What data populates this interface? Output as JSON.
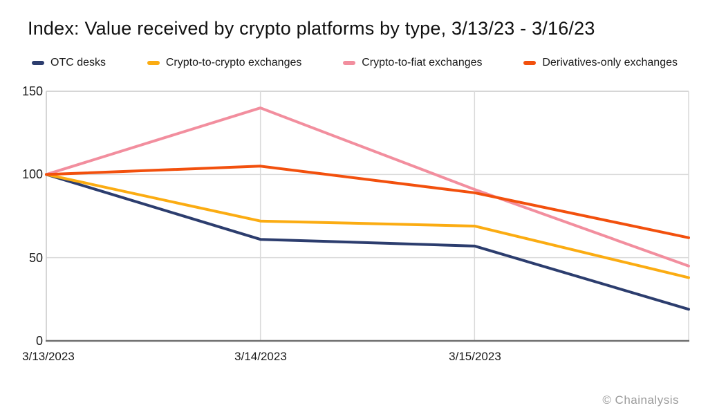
{
  "watermark": "© Chainalysis",
  "colors": {
    "background": "#FFFFFF",
    "text": "#1A1A1A",
    "gridline": "#D9D9D9",
    "plot_border": "#C9C9C9",
    "axis_bottom": "#6F6F6F",
    "watermark": "#9B9B9B"
  },
  "chart_data": {
    "type": "line",
    "title": "Index: Value received by crypto platforms by type, 3/13/23 - 3/16/23",
    "xlabel": "",
    "ylabel": "",
    "x": [
      "3/13/2023",
      "3/14/2023",
      "3/15/2023",
      "3/16/2023"
    ],
    "x_tick_labels": [
      "3/13/2023",
      "3/14/2023",
      "3/15/2023"
    ],
    "y_tick_labels": [
      "150",
      "100",
      "50",
      "0"
    ],
    "ylim": [
      0,
      150
    ],
    "grid": true,
    "legend_position": "top",
    "series": [
      {
        "name": "OTC desks",
        "color": "#2C3D6E",
        "values": [
          100,
          61,
          57,
          19
        ]
      },
      {
        "name": "Crypto-to-crypto exchanges",
        "color": "#FBAC12",
        "values": [
          100,
          72,
          69,
          38
        ]
      },
      {
        "name": "Crypto-to-fiat exchanges",
        "color": "#F28E9E",
        "values": [
          100,
          140,
          91,
          45
        ]
      },
      {
        "name": "Derivatives-only exchanges",
        "color": "#F2500D",
        "values": [
          100,
          105,
          89,
          62
        ]
      }
    ]
  }
}
